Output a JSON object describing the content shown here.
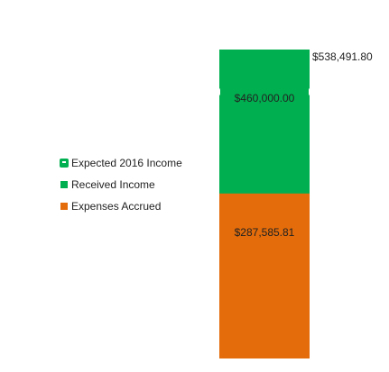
{
  "chart_data": {
    "type": "bar",
    "stacked_overlay": true,
    "categories": [
      ""
    ],
    "series": [
      {
        "name": "Expected 2016 Income",
        "values": [
          538491.8
        ],
        "label": "$538,491.80",
        "color": "#00b050",
        "style": "outline-bar"
      },
      {
        "name": "Received Income",
        "values": [
          460000.0
        ],
        "label": "$460,000.00",
        "color": "#00b050"
      },
      {
        "name": "Expenses Accrued",
        "values": [
          287585.81
        ],
        "label": "$287,585.81",
        "color": "#e46c0a"
      }
    ],
    "ylim": [
      0,
      538491.8
    ],
    "legend": "left",
    "grid": false,
    "title": "",
    "xlabel": "",
    "ylabel": ""
  }
}
